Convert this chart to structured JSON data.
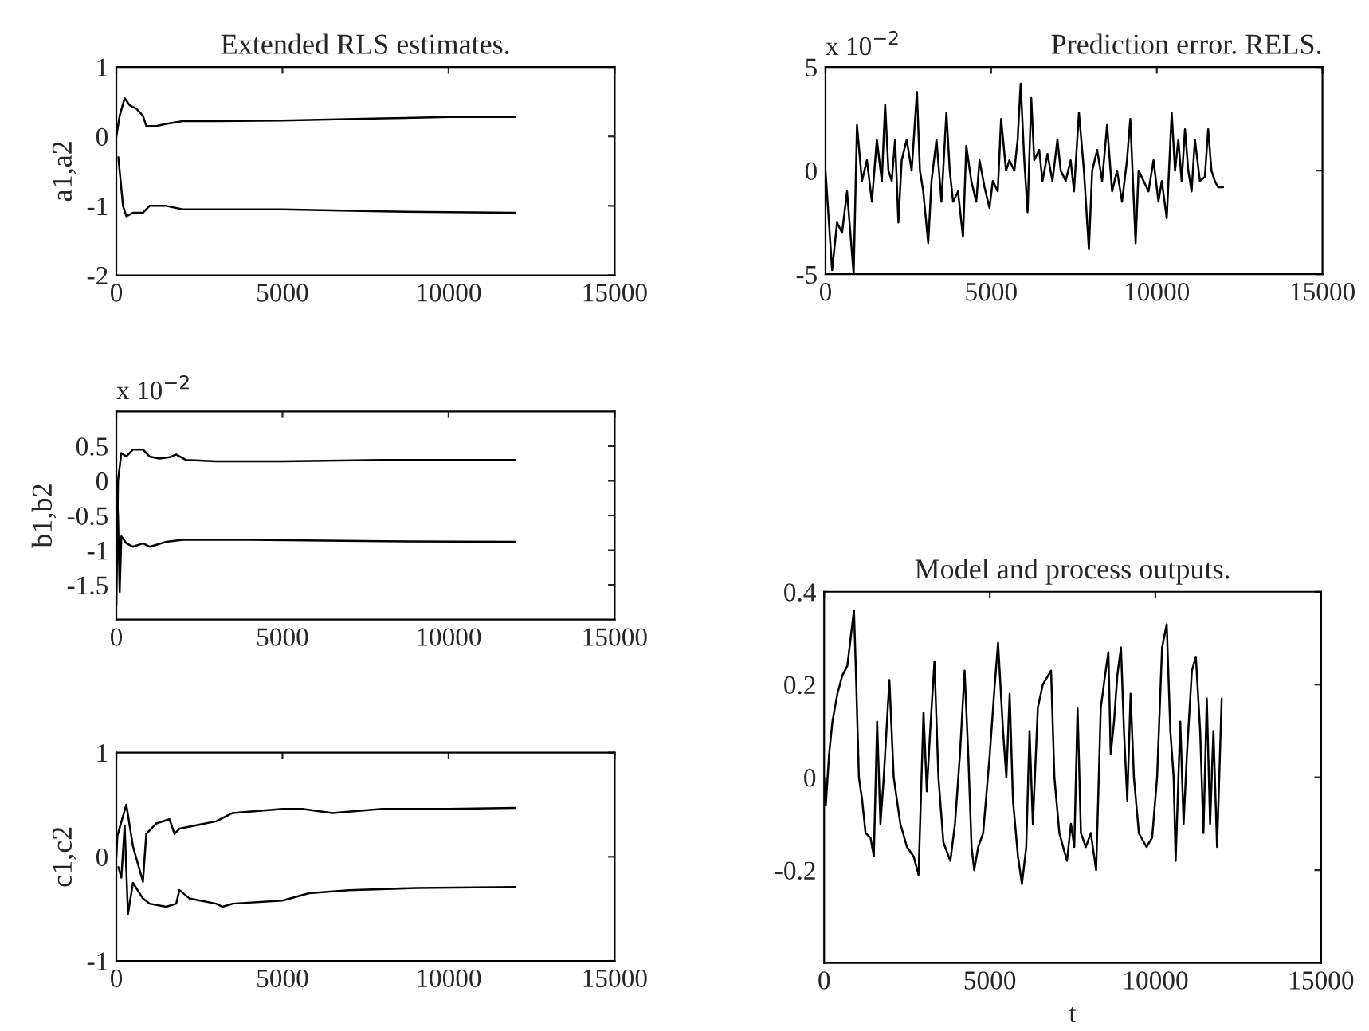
{
  "chart_data": [
    {
      "type": "line",
      "title": "Extended RLS estimates.",
      "ylabel": "a1,a2",
      "xlim": [
        0,
        15000
      ],
      "xticks": [
        0,
        5000,
        10000,
        15000
      ],
      "ylim": [
        -2,
        1
      ],
      "yticks": [
        -2,
        -1,
        0,
        1
      ],
      "grid": false,
      "legend": false,
      "series": [
        {
          "color": "#000000",
          "x": [
            0,
            100,
            250,
            400,
            600,
            800,
            900,
            1200,
            1500,
            2000,
            3000,
            5000,
            8000,
            10000,
            12000
          ],
          "values": [
            0,
            0.3,
            0.55,
            0.45,
            0.4,
            0.3,
            0.15,
            0.15,
            0.18,
            0.22,
            0.22,
            0.23,
            0.26,
            0.28,
            0.28
          ]
        },
        {
          "color": "#000000",
          "x": [
            60,
            100,
            200,
            300,
            500,
            800,
            1000,
            1500,
            2000,
            5000,
            8000,
            12000
          ],
          "values": [
            -0.3,
            -0.5,
            -1.0,
            -1.15,
            -1.1,
            -1.1,
            -1.0,
            -1.0,
            -1.05,
            -1.05,
            -1.08,
            -1.1
          ]
        }
      ]
    },
    {
      "type": "line",
      "title": "Prediction error. RELS.",
      "annotations": [
        "x 10$^{−2}$"
      ],
      "xlim": [
        0,
        15000
      ],
      "xticks": [
        0,
        5000,
        10000,
        15000
      ],
      "ylim": [
        -5,
        5
      ],
      "yticks": [
        -5,
        0,
        5
      ],
      "grid": false,
      "legend": false,
      "series": [
        {
          "color": "#000000",
          "x": [
            0,
            200,
            350,
            500,
            650,
            850,
            950,
            1100,
            1250,
            1400,
            1550,
            1700,
            1800,
            1900,
            2000,
            2100,
            2200,
            2300,
            2450,
            2600,
            2760,
            2850,
            2950,
            3100,
            3200,
            3350,
            3500,
            3650,
            3750,
            3850,
            4000,
            4150,
            4250,
            4400,
            4550,
            4650,
            4800,
            4950,
            5050,
            5200,
            5300,
            5450,
            5550,
            5700,
            5800,
            5890,
            6000,
            6100,
            6210,
            6300,
            6450,
            6550,
            6700,
            6850,
            7000,
            7100,
            7250,
            7400,
            7500,
            7650,
            7800,
            7950,
            8050,
            8200,
            8350,
            8500,
            8650,
            8800,
            8950,
            9100,
            9200,
            9360,
            9450,
            9600,
            9750,
            9900,
            10050,
            10150,
            10300,
            10450,
            10550,
            10650,
            10750,
            10850,
            10950,
            11050,
            11150,
            11300,
            11450,
            11550,
            11650,
            11750,
            11850,
            12000
          ],
          "values": [
            0,
            -4.8,
            -2.5,
            -3,
            -1,
            -5,
            2.2,
            -0.5,
            0.5,
            -1.5,
            1.5,
            -0.5,
            3.2,
            0,
            -0.5,
            1.5,
            -2.5,
            0.5,
            1.5,
            0,
            3.8,
            0,
            -1,
            -3.5,
            -0.5,
            1.5,
            -1.5,
            2.8,
            0,
            -1.5,
            -1,
            -3.2,
            1.2,
            -0.5,
            -1.5,
            0.5,
            -0.8,
            -1.8,
            -0.5,
            -1,
            2.5,
            0,
            0.5,
            0,
            1.5,
            4.2,
            0.5,
            -2,
            3.5,
            0.5,
            1,
            -0.5,
            0.8,
            -0.5,
            1.5,
            0,
            -0.5,
            0.5,
            -1,
            2.8,
            0,
            -3.8,
            0,
            1,
            -0.5,
            2.2,
            -1,
            0,
            -1.5,
            0.5,
            2.5,
            -3.5,
            0,
            -0.5,
            -1,
            0.5,
            -1.5,
            -0.5,
            -2.3,
            2.8,
            0,
            1.5,
            -0.5,
            2,
            0,
            -1,
            1.5,
            -0.5,
            -0.3,
            2,
            0,
            -0.5,
            -0.8,
            -0.8
          ]
        }
      ]
    },
    {
      "type": "line",
      "ylabel": "b1,b2",
      "annotations": [
        "x 10$^{−2}$"
      ],
      "xlim": [
        0,
        15000
      ],
      "xticks": [
        0,
        5000,
        10000,
        15000
      ],
      "ylim": [
        -2,
        1
      ],
      "yticks": [
        -1.5,
        -1,
        -0.5,
        0,
        0.5
      ],
      "grid": false,
      "legend": false,
      "series": [
        {
          "color": "#000000",
          "x": [
            0,
            50,
            150,
            300,
            500,
            800,
            1000,
            1300,
            1600,
            1800,
            2100,
            3000,
            5000,
            8000,
            12000
          ],
          "values": [
            -1.8,
            0,
            0.4,
            0.35,
            0.45,
            0.45,
            0.35,
            0.32,
            0.34,
            0.38,
            0.3,
            0.28,
            0.28,
            0.3,
            0.3
          ]
        },
        {
          "color": "#000000",
          "x": [
            0,
            50,
            100,
            150,
            300,
            500,
            800,
            1000,
            1500,
            2000,
            4000,
            8000,
            12000
          ],
          "values": [
            0,
            -0.5,
            -1.6,
            -0.8,
            -0.9,
            -0.95,
            -0.9,
            -0.95,
            -0.88,
            -0.85,
            -0.85,
            -0.87,
            -0.88
          ]
        }
      ]
    },
    {
      "type": "line",
      "title": "Model and process outputs.",
      "xlabel": "t",
      "xlim": [
        0,
        15000
      ],
      "xticks": [
        0,
        5000,
        10000,
        15000
      ],
      "ylim": [
        -0.4,
        0.4
      ],
      "yticks": [
        -0.2,
        0,
        0.2,
        0.4
      ],
      "grid": false,
      "legend": false,
      "series": [
        {
          "color": "#000000",
          "x": [
            0,
            50,
            150,
            250,
            400,
            550,
            700,
            800,
            900,
            950,
            1050,
            1150,
            1250,
            1400,
            1500,
            1600,
            1700,
            1800,
            1970,
            2100,
            2300,
            2500,
            2700,
            2850,
            3000,
            3100,
            3200,
            3330,
            3450,
            3600,
            3810,
            3950,
            4100,
            4240,
            4350,
            4450,
            4530,
            4650,
            4800,
            5000,
            5150,
            5250,
            5400,
            5500,
            5600,
            5700,
            5850,
            5970,
            6100,
            6200,
            6300,
            6450,
            6600,
            6850,
            6950,
            7100,
            7330,
            7450,
            7550,
            7650,
            7750,
            7900,
            8050,
            8210,
            8350,
            8480,
            8580,
            8650,
            8750,
            8850,
            8960,
            9050,
            9150,
            9250,
            9350,
            9500,
            9730,
            9900,
            10050,
            10200,
            10340,
            10450,
            10550,
            10610,
            10750,
            10850,
            10950,
            11100,
            11220,
            11350,
            11450,
            11550,
            11650,
            11750,
            11860,
            12000
          ],
          "values": [
            0,
            -0.06,
            0.05,
            0.12,
            0.18,
            0.22,
            0.24,
            0.3,
            0.36,
            0.25,
            0.0,
            -0.05,
            -0.12,
            -0.13,
            -0.17,
            0.12,
            -0.1,
            0.0,
            0.21,
            0.0,
            -0.1,
            -0.15,
            -0.17,
            -0.21,
            0.14,
            -0.03,
            0.1,
            0.25,
            0.0,
            -0.14,
            -0.18,
            -0.1,
            0.05,
            0.23,
            0.05,
            -0.15,
            -0.2,
            -0.15,
            -0.12,
            0.05,
            0.2,
            0.29,
            0.1,
            0.0,
            0.18,
            -0.05,
            -0.17,
            -0.23,
            -0.15,
            0.1,
            -0.1,
            0.15,
            0.2,
            0.23,
            0.0,
            -0.12,
            -0.18,
            -0.1,
            -0.15,
            0.15,
            -0.12,
            -0.15,
            -0.12,
            -0.2,
            0.15,
            0.22,
            0.27,
            0.05,
            0.12,
            0.22,
            0.28,
            0.1,
            -0.05,
            0.18,
            0.0,
            -0.12,
            -0.15,
            -0.13,
            0.0,
            0.28,
            0.33,
            0.1,
            0.0,
            -0.18,
            0.12,
            -0.1,
            0.05,
            0.23,
            0.26,
            0.1,
            -0.12,
            0.17,
            -0.1,
            0.1,
            -0.15,
            0.17
          ]
        }
      ]
    },
    {
      "type": "line",
      "ylabel": "c1,c2",
      "xlim": [
        0,
        15000
      ],
      "xticks": [
        0,
        5000,
        10000,
        15000
      ],
      "ylim": [
        -1,
        1
      ],
      "yticks": [
        -1,
        0,
        1
      ],
      "grid": false,
      "legend": false,
      "series": [
        {
          "color": "#000000",
          "x": [
            0,
            30,
            300,
            500,
            800,
            900,
            1200,
            1600,
            1750,
            1900,
            3000,
            3500,
            5000,
            5600,
            6500,
            8000,
            10000,
            12000
          ],
          "values": [
            0,
            0.2,
            0.5,
            0.1,
            -0.24,
            0.22,
            0.32,
            0.36,
            0.22,
            0.27,
            0.34,
            0.42,
            0.46,
            0.46,
            0.42,
            0.46,
            0.46,
            0.47
          ]
        },
        {
          "color": "#000000",
          "x": [
            60,
            150,
            250,
            350,
            500,
            800,
            1000,
            1500,
            1800,
            1900,
            2200,
            3000,
            3200,
            3500,
            5000,
            5800,
            7000,
            9000,
            12000
          ],
          "values": [
            -0.1,
            -0.2,
            0.3,
            -0.55,
            -0.25,
            -0.4,
            -0.45,
            -0.48,
            -0.45,
            -0.32,
            -0.4,
            -0.45,
            -0.48,
            -0.45,
            -0.42,
            -0.35,
            -0.32,
            -0.3,
            -0.29
          ]
        }
      ]
    }
  ]
}
